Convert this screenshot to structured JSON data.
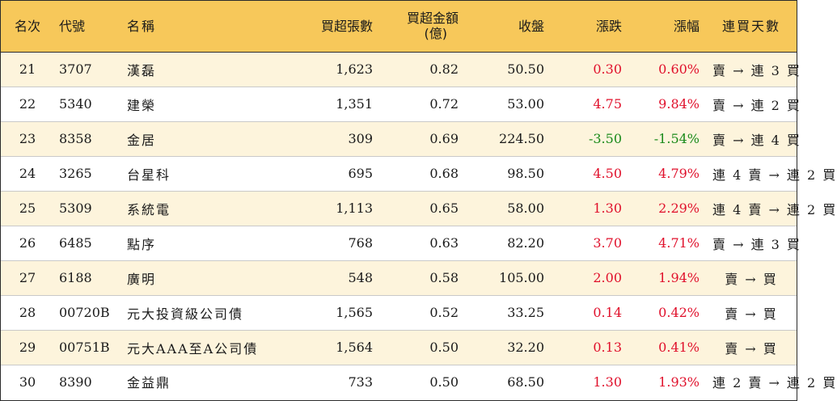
{
  "headers": {
    "rank": "名次",
    "code": "代號",
    "name": "名稱",
    "net_buy_shares": "買超張數",
    "net_buy_amount_line1": "買超金額",
    "net_buy_amount_line2": "(億)",
    "close": "收盤",
    "change": "漲跌",
    "change_pct": "漲幅",
    "streak": "連買天數"
  },
  "colors": {
    "header_bg": "#f7c85a",
    "row_alt_bg": "#fdf4dc",
    "up": "#e0102b",
    "down": "#1a8a1a"
  },
  "rows": [
    {
      "rank": "21",
      "code": "3707",
      "name": "漢磊",
      "shares": "1,623",
      "amount": "0.82",
      "close": "50.50",
      "change": "0.30",
      "pct": "0.60%",
      "streak": "賣 → 連 3 買",
      "dir": "up"
    },
    {
      "rank": "22",
      "code": "5340",
      "name": "建榮",
      "shares": "1,351",
      "amount": "0.72",
      "close": "53.00",
      "change": "4.75",
      "pct": "9.84%",
      "streak": "賣 → 連 2 買",
      "dir": "up"
    },
    {
      "rank": "23",
      "code": "8358",
      "name": "金居",
      "shares": "309",
      "amount": "0.69",
      "close": "224.50",
      "change": "-3.50",
      "pct": "-1.54%",
      "streak": "賣 → 連 4 買",
      "dir": "down"
    },
    {
      "rank": "24",
      "code": "3265",
      "name": "台星科",
      "shares": "695",
      "amount": "0.68",
      "close": "98.50",
      "change": "4.50",
      "pct": "4.79%",
      "streak": "連 4 賣 → 連 2 買",
      "dir": "up"
    },
    {
      "rank": "25",
      "code": "5309",
      "name": "系統電",
      "shares": "1,113",
      "amount": "0.65",
      "close": "58.00",
      "change": "1.30",
      "pct": "2.29%",
      "streak": "連 4 賣 → 連 2 買",
      "dir": "up"
    },
    {
      "rank": "26",
      "code": "6485",
      "name": "點序",
      "shares": "768",
      "amount": "0.63",
      "close": "82.20",
      "change": "3.70",
      "pct": "4.71%",
      "streak": "賣 → 連 3 買",
      "dir": "up"
    },
    {
      "rank": "27",
      "code": "6188",
      "name": "廣明",
      "shares": "548",
      "amount": "0.58",
      "close": "105.00",
      "change": "2.00",
      "pct": "1.94%",
      "streak": "賣 → 買",
      "dir": "up"
    },
    {
      "rank": "28",
      "code": "00720B",
      "name": "元大投資級公司債",
      "shares": "1,565",
      "amount": "0.52",
      "close": "33.25",
      "change": "0.14",
      "pct": "0.42%",
      "streak": "賣 → 買",
      "dir": "up"
    },
    {
      "rank": "29",
      "code": "00751B",
      "name": "元大AAA至A公司債",
      "shares": "1,564",
      "amount": "0.50",
      "close": "32.20",
      "change": "0.13",
      "pct": "0.41%",
      "streak": "賣 → 買",
      "dir": "up"
    },
    {
      "rank": "30",
      "code": "8390",
      "name": "金益鼎",
      "shares": "733",
      "amount": "0.50",
      "close": "68.50",
      "change": "1.30",
      "pct": "1.93%",
      "streak": "連 2 賣 → 連 2 買",
      "dir": "up"
    }
  ]
}
